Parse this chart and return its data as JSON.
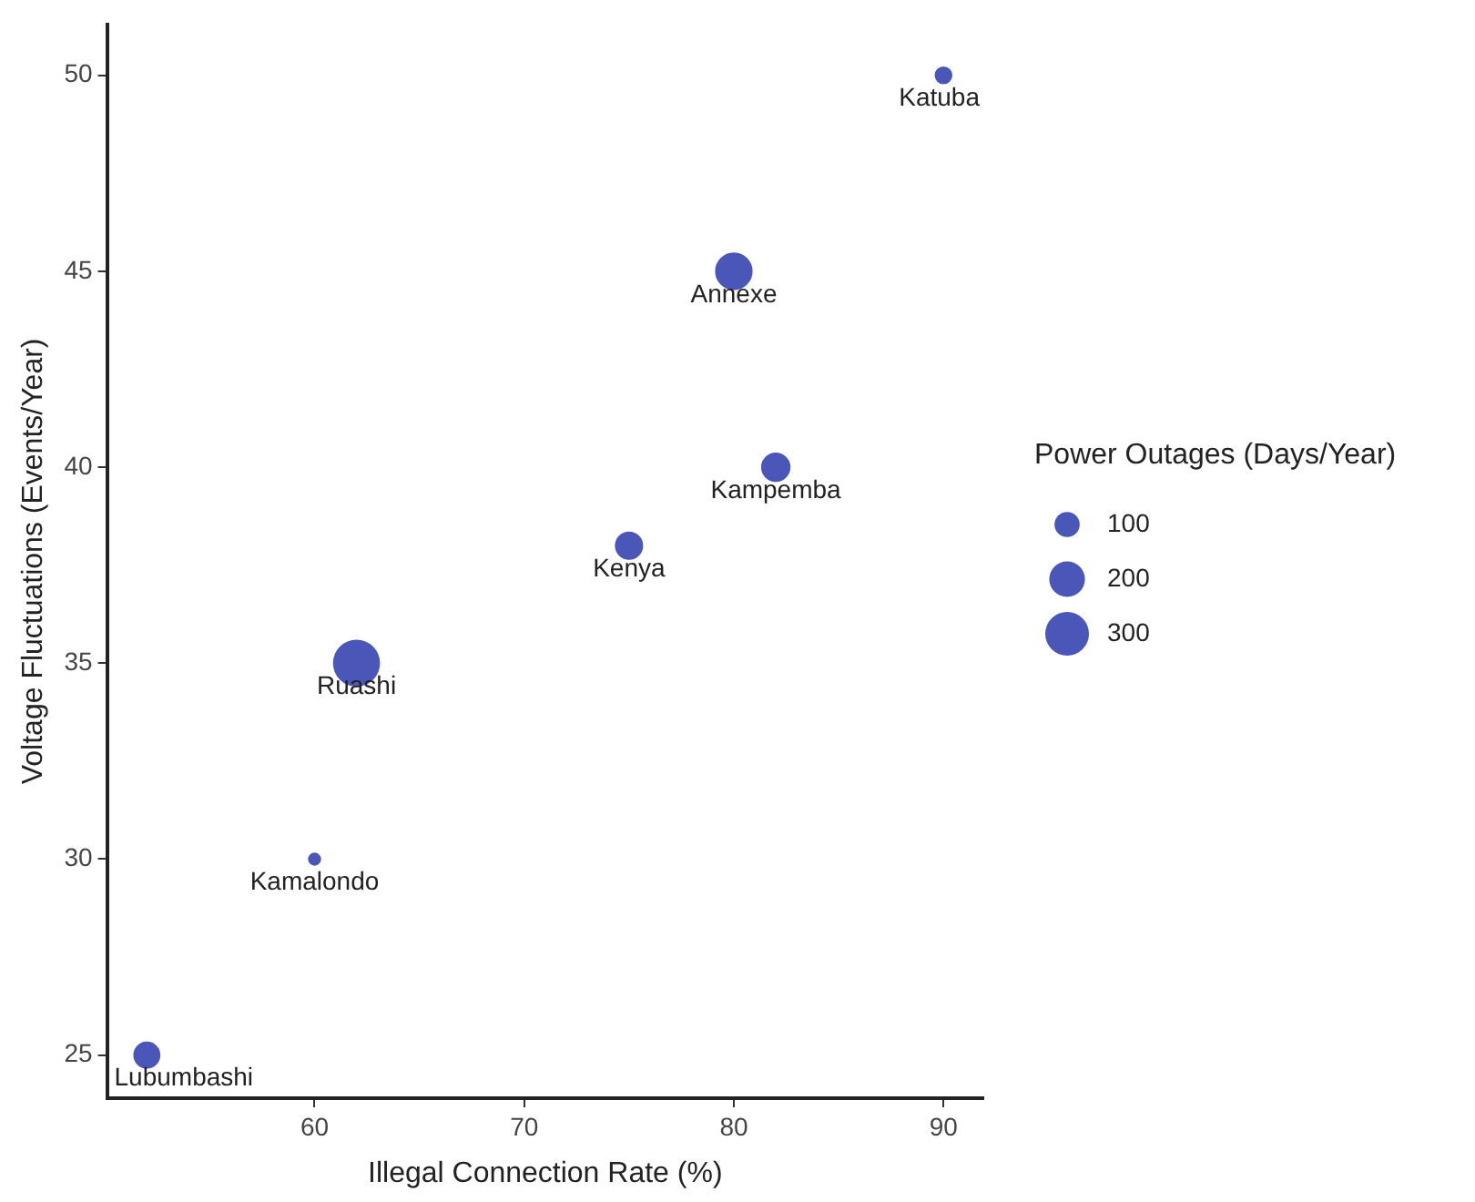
{
  "chart_data": {
    "type": "bubble",
    "xlabel": "Illegal Connection Rate (%)",
    "ylabel": "Voltage Fluctuations (Events/Year)",
    "legend_title": "Power Outages (Days/Year)",
    "grid": false,
    "series": [
      {
        "color": "#4a56b8",
        "x": [
          52,
          60,
          62,
          75,
          80,
          82,
          90
        ],
        "values": [
          25,
          30,
          35,
          38,
          45,
          40,
          50
        ],
        "sizes": [
          100,
          20,
          320,
          110,
          200,
          120,
          40
        ]
      }
    ],
    "size_legend": [
      100,
      200,
      300
    ],
    "xlim": [
      50.1,
      91.9
    ],
    "xticks": [
      60,
      70,
      80,
      90
    ],
    "ylim": [
      23.9,
      51.3
    ],
    "yticks": [
      25,
      30,
      35,
      40,
      45,
      50
    ],
    "annotations": [
      {
        "text": "Lubumbashi",
        "x": 52,
        "y": 25
      },
      {
        "text": "Kamalondo",
        "x": 60,
        "y": 30
      },
      {
        "text": "Ruashi",
        "x": 62,
        "y": 35
      },
      {
        "text": "Kenya",
        "x": 75,
        "y": 38
      },
      {
        "text": "Annexe",
        "x": 80,
        "y": 45
      },
      {
        "text": "Kampemba",
        "x": 82,
        "y": 40
      },
      {
        "text": "Katuba",
        "x": 90,
        "y": 50
      }
    ]
  }
}
